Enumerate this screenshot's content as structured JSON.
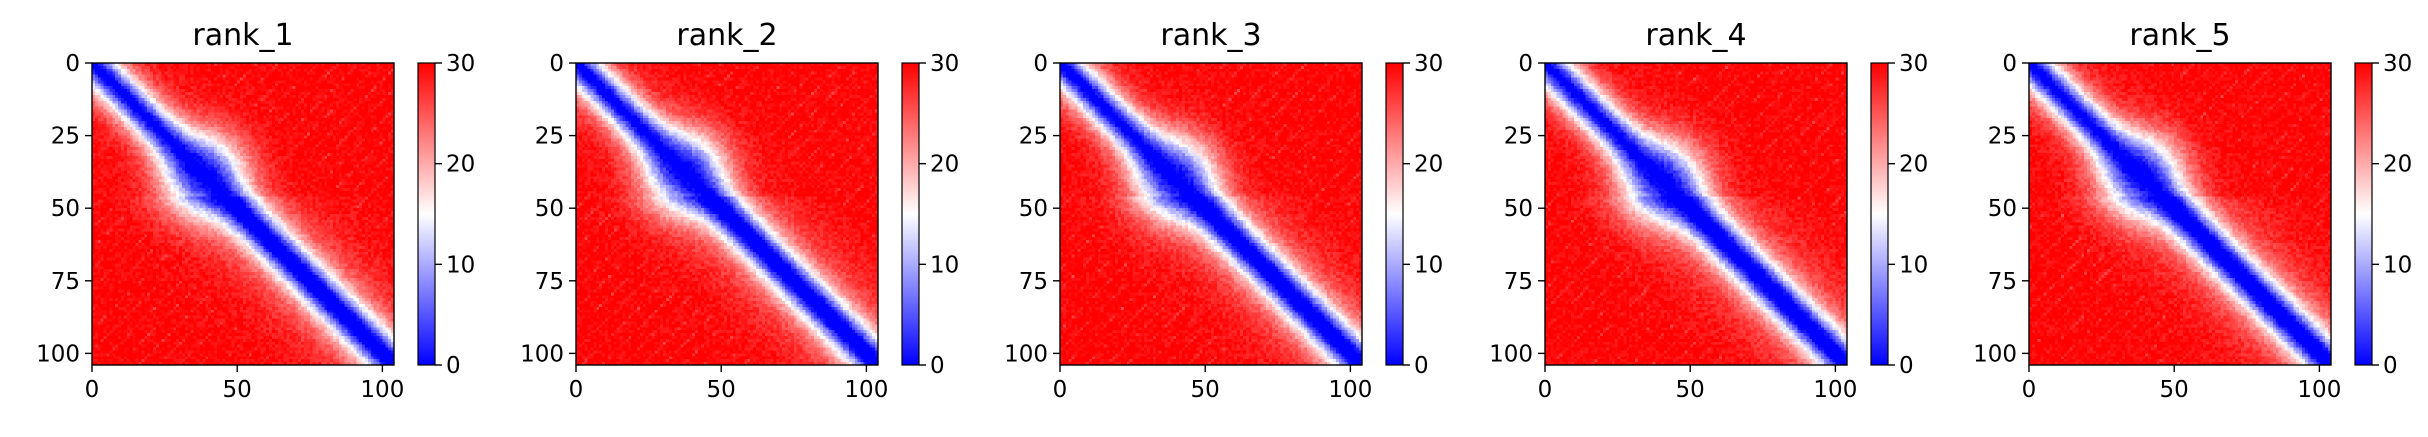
{
  "chart_data": [
    {
      "type": "heatmap",
      "title": "rank_1",
      "x_ticks": [
        0,
        50,
        100
      ],
      "y_ticks": [
        0,
        25,
        50,
        75,
        100
      ],
      "xlim": [
        0,
        104
      ],
      "ylim": [
        104,
        0
      ],
      "colorbar": {
        "ticks": [
          0,
          10,
          20,
          30
        ],
        "range": [
          0,
          30
        ],
        "colors": [
          "#0000ff",
          "#ffffff",
          "#ff0000"
        ]
      },
      "domain_center": 38
    },
    {
      "type": "heatmap",
      "title": "rank_2",
      "x_ticks": [
        0,
        50,
        100
      ],
      "y_ticks": [
        0,
        25,
        50,
        75,
        100
      ],
      "xlim": [
        0,
        104
      ],
      "ylim": [
        104,
        0
      ],
      "colorbar": {
        "ticks": [
          0,
          10,
          20,
          30
        ],
        "range": [
          0,
          30
        ],
        "colors": [
          "#0000ff",
          "#ffffff",
          "#ff0000"
        ]
      },
      "domain_center": 37
    },
    {
      "type": "heatmap",
      "title": "rank_3",
      "x_ticks": [
        0,
        50,
        100
      ],
      "y_ticks": [
        0,
        25,
        50,
        75,
        100
      ],
      "xlim": [
        0,
        104
      ],
      "ylim": [
        104,
        0
      ],
      "colorbar": {
        "ticks": [
          0,
          10,
          20,
          30
        ],
        "range": [
          0,
          30
        ],
        "colors": [
          "#0000ff",
          "#ffffff",
          "#ff0000"
        ]
      },
      "domain_center": 39
    },
    {
      "type": "heatmap",
      "title": "rank_4",
      "x_ticks": [
        0,
        50,
        100
      ],
      "y_ticks": [
        0,
        25,
        50,
        75,
        100
      ],
      "xlim": [
        0,
        104
      ],
      "ylim": [
        104,
        0
      ],
      "colorbar": {
        "ticks": [
          0,
          10,
          20,
          30
        ],
        "range": [
          0,
          30
        ],
        "colors": [
          "#0000ff",
          "#ffffff",
          "#ff0000"
        ]
      },
      "domain_center": 40
    },
    {
      "type": "heatmap",
      "title": "rank_5",
      "x_ticks": [
        0,
        50,
        100
      ],
      "y_ticks": [
        0,
        25,
        50,
        75,
        100
      ],
      "xlim": [
        0,
        104
      ],
      "ylim": [
        104,
        0
      ],
      "colorbar": {
        "ticks": [
          0,
          10,
          20,
          30
        ],
        "range": [
          0,
          30
        ],
        "colors": [
          "#0000ff",
          "#ffffff",
          "#ff0000"
        ]
      },
      "domain_center": 38
    }
  ]
}
